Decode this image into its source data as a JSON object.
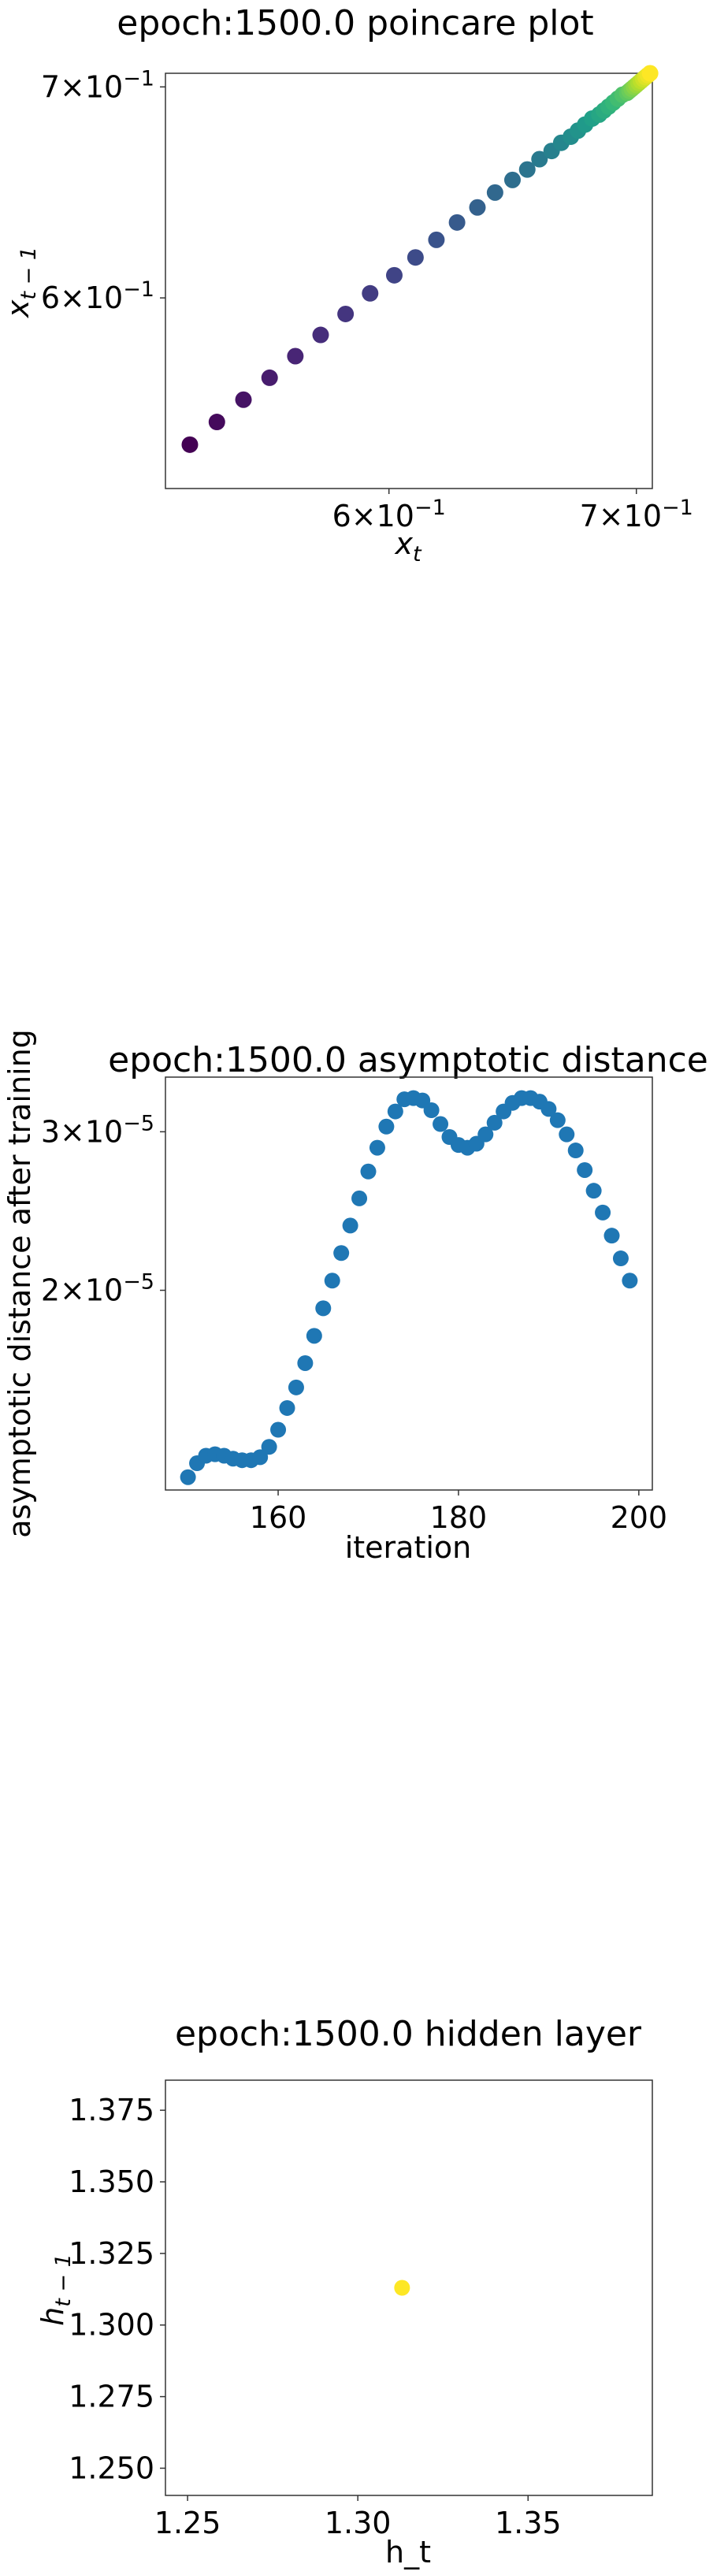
{
  "chart_data": [
    {
      "type": "scatter",
      "title": "epoch:1500.0 poincare plot",
      "xlabel": "x_t",
      "ylabel": "x_{t-1}",
      "xscale": "log",
      "yscale": "log",
      "xlim": [
        0.522,
        0.707
      ],
      "ylim": [
        0.522,
        0.707
      ],
      "xticks": [
        {
          "value": 0.6,
          "mantissa": "6",
          "exp": "−1"
        },
        {
          "value": 0.7,
          "mantissa": "7",
          "exp": "−1"
        }
      ],
      "yticks": [
        {
          "value": 0.6,
          "mantissa": "6",
          "exp": "−1"
        },
        {
          "value": 0.7,
          "mantissa": "7",
          "exp": "−1"
        }
      ],
      "grid": false,
      "colormap": "viridis",
      "x": [
        0.53,
        0.539,
        0.548,
        0.557,
        0.566,
        0.575,
        0.584,
        0.593,
        0.602,
        0.61,
        0.618,
        0.626,
        0.634,
        0.641,
        0.648,
        0.654,
        0.659,
        0.664,
        0.668,
        0.672,
        0.675,
        0.678,
        0.681,
        0.684,
        0.686,
        0.688,
        0.69,
        0.692,
        0.694,
        0.696,
        0.697,
        0.698,
        0.699,
        0.7,
        0.701,
        0.702,
        0.703,
        0.704,
        0.705,
        0.706
      ],
      "y": [
        0.539,
        0.548,
        0.557,
        0.566,
        0.575,
        0.584,
        0.593,
        0.602,
        0.61,
        0.618,
        0.626,
        0.634,
        0.641,
        0.648,
        0.654,
        0.659,
        0.664,
        0.668,
        0.672,
        0.675,
        0.678,
        0.681,
        0.684,
        0.686,
        0.688,
        0.69,
        0.692,
        0.694,
        0.696,
        0.697,
        0.698,
        0.699,
        0.7,
        0.701,
        0.702,
        0.703,
        0.704,
        0.705,
        0.706,
        0.707
      ]
    },
    {
      "type": "scatter",
      "title": "epoch:1500.0 asymptotic distance",
      "xlabel": "iteration",
      "ylabel": "asymptotic distance after training",
      "xscale": "linear",
      "yscale": "log",
      "xlim": [
        147.5,
        201.5
      ],
      "ylim": [
        1.2e-05,
        3.45e-05
      ],
      "xticks": [
        {
          "value": 160,
          "label": "160"
        },
        {
          "value": 180,
          "label": "180"
        },
        {
          "value": 200,
          "label": "200"
        }
      ],
      "yticks": [
        {
          "value": 3e-05,
          "mantissa": "3",
          "exp": "−5"
        },
        {
          "value": 2e-05,
          "mantissa": "2",
          "exp": "−5"
        }
      ],
      "grid": false,
      "color": "#1f77b4",
      "x": [
        150,
        151,
        152,
        153,
        154,
        155,
        156,
        157,
        158,
        159,
        160,
        161,
        162,
        163,
        164,
        165,
        166,
        167,
        168,
        169,
        170,
        171,
        172,
        173,
        174,
        175,
        176,
        177,
        178,
        179,
        180,
        181,
        182,
        183,
        184,
        185,
        186,
        187,
        188,
        189,
        190,
        191,
        192,
        193,
        194,
        195,
        196,
        197,
        198,
        199
      ],
      "y": [
        1.24e-05,
        1.285e-05,
        1.31e-05,
        1.315e-05,
        1.31e-05,
        1.3e-05,
        1.295e-05,
        1.295e-05,
        1.305e-05,
        1.34e-05,
        1.4e-05,
        1.48e-05,
        1.56e-05,
        1.66e-05,
        1.78e-05,
        1.91e-05,
        2.05e-05,
        2.2e-05,
        2.36e-05,
        2.53e-05,
        2.71e-05,
        2.88e-05,
        3.04e-05,
        3.16e-05,
        3.26e-05,
        3.27e-05,
        3.25e-05,
        3.17e-05,
        3.06e-05,
        2.96e-05,
        2.9e-05,
        2.88e-05,
        2.91e-05,
        2.98e-05,
        3.07e-05,
        3.16e-05,
        3.23e-05,
        3.27e-05,
        3.27e-05,
        3.24e-05,
        3.18e-05,
        3.09e-05,
        2.98e-05,
        2.86e-05,
        2.72e-05,
        2.58e-05,
        2.44e-05,
        2.3e-05,
        2.17e-05,
        2.05e-05
      ]
    },
    {
      "type": "scatter",
      "title": "epoch:1500.0 hidden layer",
      "xlabel": "h_t",
      "ylabel": "h_{t-1}",
      "xscale": "linear",
      "yscale": "linear",
      "xlim": [
        1.2435,
        1.3865
      ],
      "ylim": [
        1.2405,
        1.3855
      ],
      "xticks": [
        {
          "value": 1.25,
          "label": "1.25"
        },
        {
          "value": 1.3,
          "label": "1.30"
        },
        {
          "value": 1.35,
          "label": "1.35"
        }
      ],
      "yticks": [
        {
          "value": 1.25,
          "label": "1.250"
        },
        {
          "value": 1.275,
          "label": "1.275"
        },
        {
          "value": 1.3,
          "label": "1.300"
        },
        {
          "value": 1.325,
          "label": "1.325"
        },
        {
          "value": 1.35,
          "label": "1.350"
        },
        {
          "value": 1.375,
          "label": "1.375"
        }
      ],
      "grid": false,
      "color": "#fde725",
      "x": [
        1.313
      ],
      "y": [
        1.313
      ]
    }
  ]
}
